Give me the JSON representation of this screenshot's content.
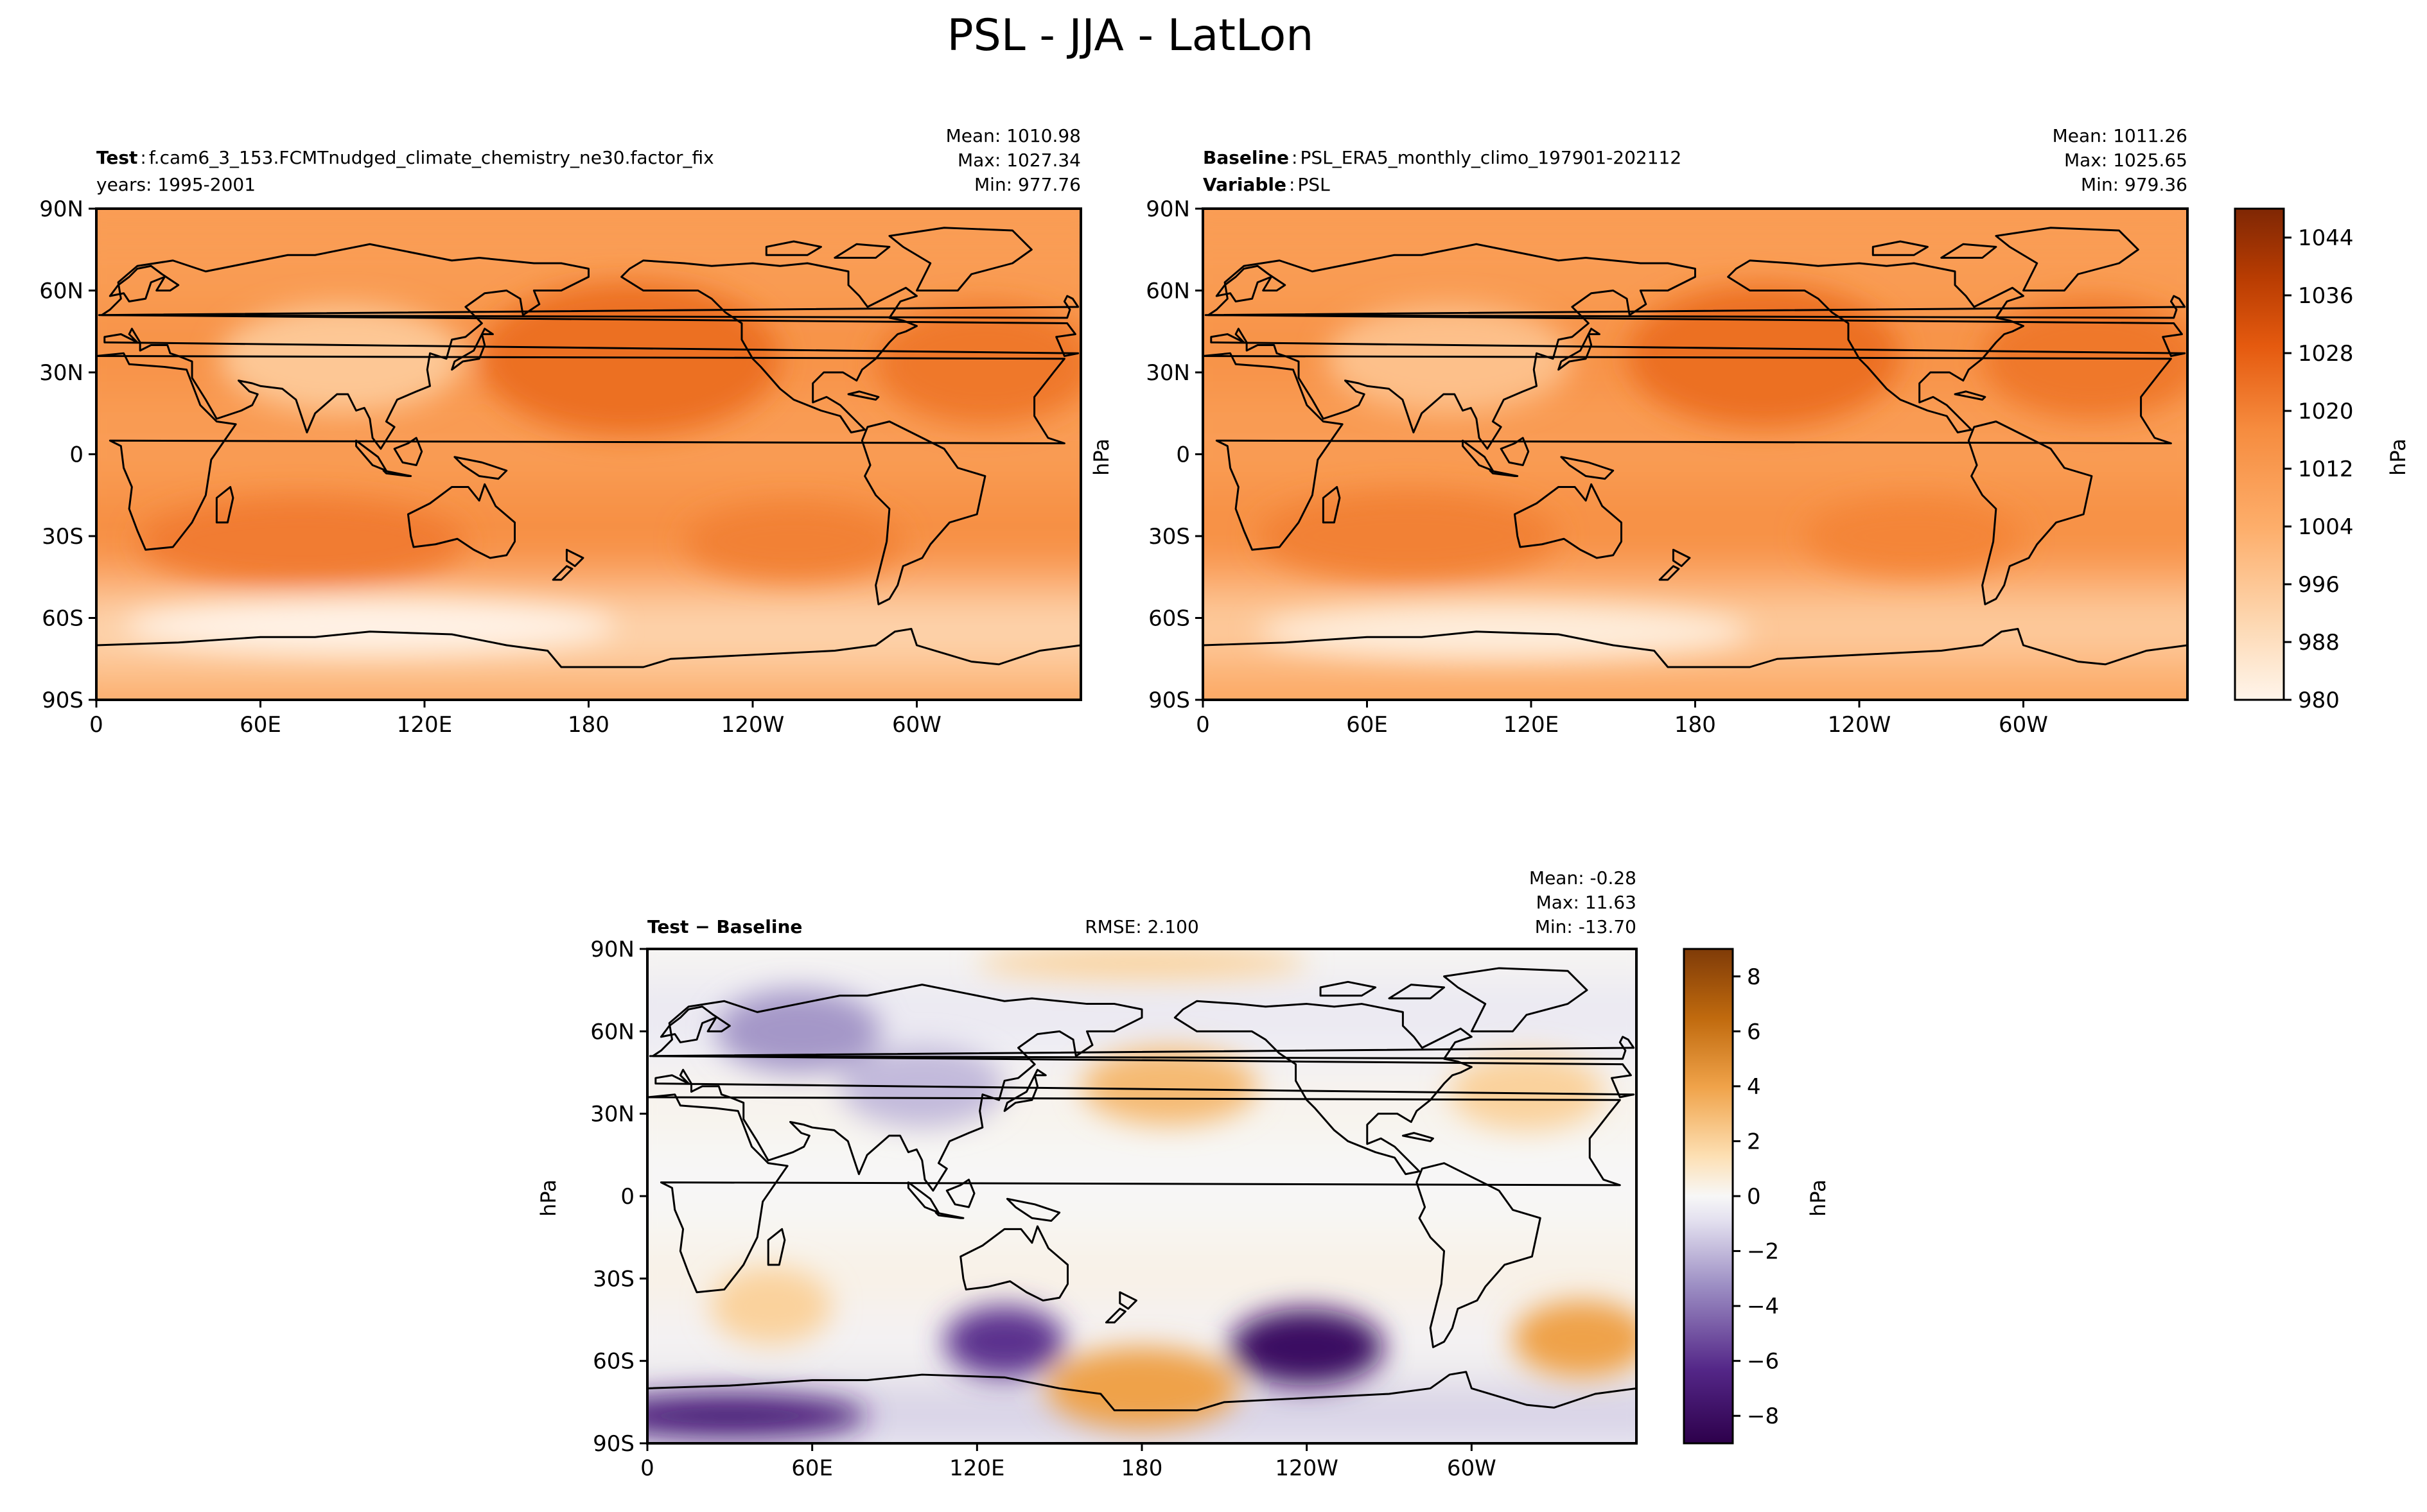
{
  "figure": {
    "title": "PSL - JJA - LatLon"
  },
  "chart_data": [
    {
      "type": "heatmap",
      "panel": "test",
      "label_bold": "Test",
      "label_text": "f.cam6_3_153.FCMTnudged_climate_chemistry_ne30.factor_fix",
      "subtitle": "years: 1995-2001",
      "stats": {
        "mean": "Mean: 1010.98",
        "max": "Max: 1027.34",
        "min": "Min: 977.76"
      },
      "xticks": [
        "0",
        "60E",
        "120E",
        "180",
        "120W",
        "60W"
      ],
      "yticks": [
        "90N",
        "60N",
        "30N",
        "0",
        "30S",
        "60S",
        "90S"
      ],
      "xlim": [
        0,
        360
      ],
      "ylim": [
        -90,
        90
      ],
      "ylabel": "",
      "colormap": "oranges",
      "clim": [
        980,
        1048
      ],
      "features": [
        {
          "lon": 195,
          "lat": 35,
          "value": 1024,
          "w": 55,
          "h": 28
        },
        {
          "lon": 325,
          "lat": 33,
          "value": 1022,
          "w": 40,
          "h": 22
        },
        {
          "lon": 75,
          "lat": -32,
          "value": 1021,
          "w": 60,
          "h": 16
        },
        {
          "lon": 255,
          "lat": -32,
          "value": 1020,
          "w": 40,
          "h": 14
        },
        {
          "lon": 100,
          "lat": -63,
          "value": 981,
          "w": 90,
          "h": 10
        },
        {
          "lon": 90,
          "lat": 35,
          "value": 996,
          "w": 45,
          "h": 20
        }
      ]
    },
    {
      "type": "heatmap",
      "panel": "baseline",
      "label_bold": "Baseline",
      "label_text": "PSL_ERA5_monthly_climo_197901-202112",
      "label2_bold": "Variable",
      "label2_text": "PSL",
      "stats": {
        "mean": "Mean: 1011.26",
        "max": "Max: 1025.65",
        "min": "Min: 979.36"
      },
      "xticks": [
        "0",
        "60E",
        "120E",
        "180",
        "120W",
        "60W"
      ],
      "yticks": [
        "90N",
        "60N",
        "30N",
        "0",
        "30S",
        "60S",
        "90S"
      ],
      "xlim": [
        0,
        360
      ],
      "ylim": [
        -90,
        90
      ],
      "ylabel": "hPa",
      "colormap": "oranges",
      "clim": [
        980,
        1048
      ],
      "colorbar": {
        "ticks": [
          "980",
          "988",
          "996",
          "1004",
          "1012",
          "1020",
          "1028",
          "1036",
          "1044"
        ],
        "label": "hPa"
      },
      "features": [
        {
          "lon": 205,
          "lat": 36,
          "value": 1024,
          "w": 50,
          "h": 26
        },
        {
          "lon": 325,
          "lat": 35,
          "value": 1022,
          "w": 40,
          "h": 22
        },
        {
          "lon": 75,
          "lat": -30,
          "value": 1020,
          "w": 55,
          "h": 16
        },
        {
          "lon": 260,
          "lat": -30,
          "value": 1019,
          "w": 40,
          "h": 14
        },
        {
          "lon": 110,
          "lat": -65,
          "value": 983,
          "w": 90,
          "h": 10
        },
        {
          "lon": 90,
          "lat": 35,
          "value": 998,
          "w": 45,
          "h": 20
        }
      ]
    },
    {
      "type": "heatmap",
      "panel": "difference",
      "label_bold": "Test",
      "label_op": " − ",
      "label_bold2": "Baseline",
      "rmse": "RMSE: 2.100",
      "stats": {
        "mean": "Mean: -0.28",
        "max": "Max: 11.63",
        "min": "Min: -13.70"
      },
      "xticks": [
        "0",
        "60E",
        "120E",
        "180",
        "120W",
        "60W"
      ],
      "yticks": [
        "90N",
        "60N",
        "30N",
        "0",
        "30S",
        "60S",
        "90S"
      ],
      "xlim": [
        0,
        360
      ],
      "ylim": [
        -90,
        90
      ],
      "ylabel": "hPa",
      "colormap": "puor",
      "clim": [
        -9,
        9
      ],
      "colorbar": {
        "ticks": [
          "−8",
          "−6",
          "−4",
          "−2",
          "0",
          "2",
          "4",
          "6",
          "8"
        ],
        "label": "hPa"
      },
      "features": [
        {
          "lon": 240,
          "lat": -55,
          "value": -8,
          "w": 28,
          "h": 14
        },
        {
          "lon": 130,
          "lat": -53,
          "value": -6,
          "w": 22,
          "h": 13
        },
        {
          "lon": 180,
          "lat": -70,
          "value": 4,
          "w": 35,
          "h": 15
        },
        {
          "lon": 340,
          "lat": -52,
          "value": 4,
          "w": 25,
          "h": 14
        },
        {
          "lon": 45,
          "lat": -40,
          "value": 2,
          "w": 22,
          "h": 14
        },
        {
          "lon": 190,
          "lat": 40,
          "value": 3,
          "w": 32,
          "h": 14
        },
        {
          "lon": 320,
          "lat": 38,
          "value": 2,
          "w": 28,
          "h": 14
        },
        {
          "lon": 55,
          "lat": 60,
          "value": -3,
          "w": 30,
          "h": 15
        },
        {
          "lon": 100,
          "lat": 40,
          "value": -2,
          "w": 30,
          "h": 15
        },
        {
          "lon": 30,
          "lat": -80,
          "value": -7,
          "w": 50,
          "h": 8
        },
        {
          "lon": 180,
          "lat": 85,
          "value": 2,
          "w": 60,
          "h": 6
        }
      ]
    }
  ]
}
